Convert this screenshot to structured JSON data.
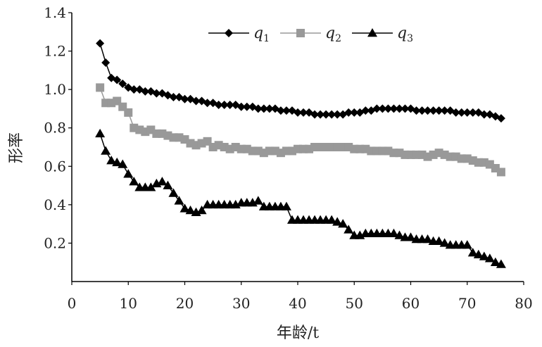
{
  "chart_data": {
    "type": "line",
    "title": "",
    "xlabel": "年龄/t",
    "ylabel": "形率",
    "xlim": [
      0,
      80
    ],
    "ylim": [
      0,
      1.4
    ],
    "x_ticks": [
      "0",
      "10",
      "20",
      "30",
      "40",
      "50",
      "60",
      "70",
      "80"
    ],
    "y_ticks": [
      "0.2",
      "0.4",
      "0.6",
      "0.8",
      "1.0",
      "1.2",
      "1.4"
    ],
    "grid": false,
    "legend_position": "top",
    "series": [
      {
        "name": "q",
        "subscript": "1",
        "marker": "diamond",
        "color": "#000000",
        "x": [
          5,
          6,
          7,
          8,
          9,
          10,
          11,
          12,
          13,
          14,
          15,
          16,
          17,
          18,
          19,
          20,
          21,
          22,
          23,
          24,
          25,
          26,
          27,
          28,
          29,
          30,
          31,
          32,
          33,
          34,
          35,
          36,
          37,
          38,
          39,
          40,
          41,
          42,
          43,
          44,
          45,
          46,
          47,
          48,
          49,
          50,
          51,
          52,
          53,
          54,
          55,
          56,
          57,
          58,
          59,
          60,
          61,
          62,
          63,
          64,
          65,
          66,
          67,
          68,
          69,
          70,
          71,
          72,
          73,
          74,
          75,
          76
        ],
        "values": [
          1.24,
          1.14,
          1.06,
          1.05,
          1.03,
          1.01,
          1.0,
          1.0,
          0.99,
          0.99,
          0.98,
          0.98,
          0.97,
          0.96,
          0.96,
          0.95,
          0.95,
          0.94,
          0.94,
          0.93,
          0.93,
          0.92,
          0.92,
          0.92,
          0.92,
          0.91,
          0.91,
          0.91,
          0.9,
          0.9,
          0.9,
          0.9,
          0.89,
          0.89,
          0.89,
          0.88,
          0.88,
          0.88,
          0.87,
          0.87,
          0.87,
          0.87,
          0.87,
          0.87,
          0.88,
          0.88,
          0.88,
          0.89,
          0.89,
          0.9,
          0.9,
          0.9,
          0.9,
          0.9,
          0.9,
          0.9,
          0.89,
          0.89,
          0.89,
          0.89,
          0.89,
          0.89,
          0.89,
          0.88,
          0.88,
          0.88,
          0.88,
          0.88,
          0.87,
          0.87,
          0.86,
          0.85
        ]
      },
      {
        "name": "q",
        "subscript": "2",
        "marker": "square",
        "color": "#999999",
        "x": [
          5,
          6,
          7,
          8,
          9,
          10,
          11,
          12,
          13,
          14,
          15,
          16,
          17,
          18,
          19,
          20,
          21,
          22,
          23,
          24,
          25,
          26,
          27,
          28,
          29,
          30,
          31,
          32,
          33,
          34,
          35,
          36,
          37,
          38,
          39,
          40,
          41,
          42,
          43,
          44,
          45,
          46,
          47,
          48,
          49,
          50,
          51,
          52,
          53,
          54,
          55,
          56,
          57,
          58,
          59,
          60,
          61,
          62,
          63,
          64,
          65,
          66,
          67,
          68,
          69,
          70,
          71,
          72,
          73,
          74,
          75,
          76
        ],
        "values": [
          1.01,
          0.93,
          0.93,
          0.94,
          0.91,
          0.88,
          0.8,
          0.79,
          0.78,
          0.79,
          0.77,
          0.77,
          0.76,
          0.75,
          0.75,
          0.74,
          0.72,
          0.71,
          0.72,
          0.73,
          0.7,
          0.71,
          0.7,
          0.69,
          0.7,
          0.69,
          0.69,
          0.68,
          0.68,
          0.67,
          0.68,
          0.68,
          0.67,
          0.68,
          0.68,
          0.69,
          0.69,
          0.69,
          0.7,
          0.7,
          0.7,
          0.7,
          0.7,
          0.7,
          0.7,
          0.69,
          0.69,
          0.69,
          0.68,
          0.68,
          0.68,
          0.68,
          0.67,
          0.67,
          0.66,
          0.66,
          0.66,
          0.66,
          0.65,
          0.66,
          0.67,
          0.66,
          0.65,
          0.65,
          0.64,
          0.64,
          0.63,
          0.62,
          0.62,
          0.61,
          0.59,
          0.57
        ]
      },
      {
        "name": "q",
        "subscript": "3",
        "marker": "triangle",
        "color": "#000000",
        "x": [
          5,
          6,
          7,
          8,
          9,
          10,
          11,
          12,
          13,
          14,
          15,
          16,
          17,
          18,
          19,
          20,
          21,
          22,
          23,
          24,
          25,
          26,
          27,
          28,
          29,
          30,
          31,
          32,
          33,
          34,
          35,
          36,
          37,
          38,
          39,
          40,
          41,
          42,
          43,
          44,
          45,
          46,
          47,
          48,
          49,
          50,
          51,
          52,
          53,
          54,
          55,
          56,
          57,
          58,
          59,
          60,
          61,
          62,
          63,
          64,
          65,
          66,
          67,
          68,
          69,
          70,
          71,
          72,
          73,
          74,
          75,
          76
        ],
        "values": [
          0.77,
          0.68,
          0.63,
          0.62,
          0.61,
          0.56,
          0.52,
          0.49,
          0.49,
          0.49,
          0.51,
          0.52,
          0.5,
          0.46,
          0.42,
          0.38,
          0.37,
          0.36,
          0.37,
          0.4,
          0.4,
          0.4,
          0.4,
          0.4,
          0.4,
          0.41,
          0.41,
          0.41,
          0.42,
          0.39,
          0.39,
          0.39,
          0.39,
          0.39,
          0.32,
          0.32,
          0.32,
          0.32,
          0.32,
          0.32,
          0.32,
          0.32,
          0.31,
          0.3,
          0.27,
          0.24,
          0.24,
          0.25,
          0.25,
          0.25,
          0.25,
          0.25,
          0.25,
          0.24,
          0.23,
          0.23,
          0.22,
          0.22,
          0.22,
          0.21,
          0.21,
          0.2,
          0.19,
          0.19,
          0.19,
          0.19,
          0.15,
          0.14,
          0.13,
          0.12,
          0.1,
          0.09
        ]
      }
    ]
  }
}
